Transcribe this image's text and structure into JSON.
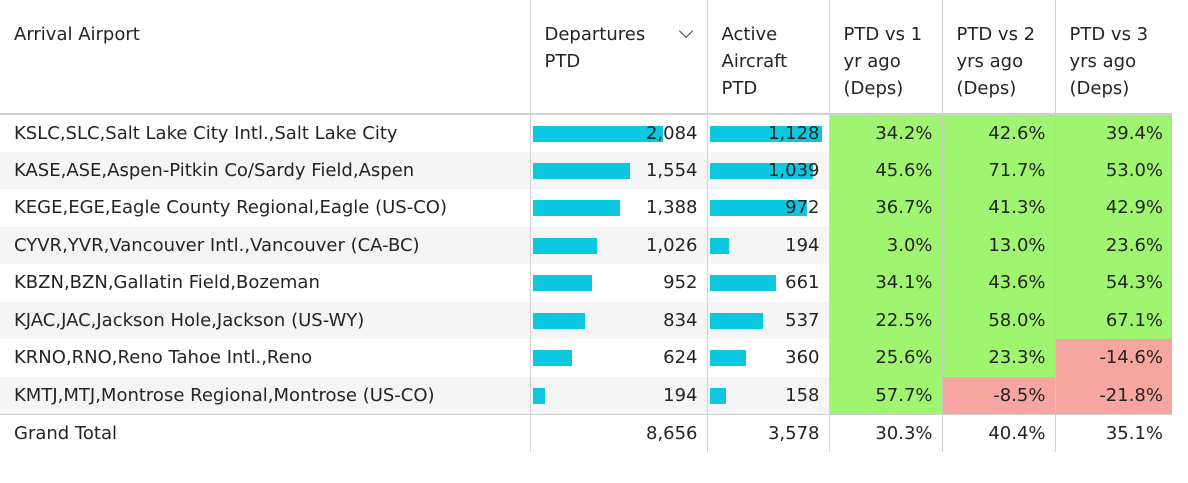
{
  "headers": {
    "airport": "Arrival Airport",
    "departures": "Departures PTD",
    "aircraft": "Active Aircraft PTD",
    "vs1": "PTD vs 1 yr ago (Deps)",
    "vs2": "PTD vs 2 yrs ago (Deps)",
    "vs3": "PTD vs 3 yrs ago (Deps)"
  },
  "rows": [
    {
      "airport": "KSLC,SLC,Salt Lake City Intl.,Salt Lake City",
      "departures": "2,084",
      "aircraft": "1,128",
      "vs1": "34.2%",
      "vs2": "42.6%",
      "vs3": "39.4%"
    },
    {
      "airport": "KASE,ASE,Aspen-Pitkin Co/Sardy Field,Aspen",
      "departures": "1,554",
      "aircraft": "1,039",
      "vs1": "45.6%",
      "vs2": "71.7%",
      "vs3": "53.0%"
    },
    {
      "airport": "KEGE,EGE,Eagle County Regional,Eagle (US-CO)",
      "departures": "1,388",
      "aircraft": "972",
      "vs1": "36.7%",
      "vs2": "41.3%",
      "vs3": "42.9%"
    },
    {
      "airport": "CYVR,YVR,Vancouver Intl.,Vancouver (CA-BC)",
      "departures": "1,026",
      "aircraft": "194",
      "vs1": "3.0%",
      "vs2": "13.0%",
      "vs3": "23.6%"
    },
    {
      "airport": "KBZN,BZN,Gallatin Field,Bozeman",
      "departures": "952",
      "aircraft": "661",
      "vs1": "34.1%",
      "vs2": "43.6%",
      "vs3": "54.3%"
    },
    {
      "airport": "KJAC,JAC,Jackson Hole,Jackson (US-WY)",
      "departures": "834",
      "aircraft": "537",
      "vs1": "22.5%",
      "vs2": "58.0%",
      "vs3": "67.1%"
    },
    {
      "airport": "KRNO,RNO,Reno Tahoe Intl.,Reno",
      "departures": "624",
      "aircraft": "360",
      "vs1": "25.6%",
      "vs2": "23.3%",
      "vs3": "-14.6%"
    },
    {
      "airport": "KMTJ,MTJ,Montrose Regional,Montrose (US-CO)",
      "departures": "194",
      "aircraft": "158",
      "vs1": "57.7%",
      "vs2": "-8.5%",
      "vs3": "-21.8%"
    }
  ],
  "total": {
    "label": "Grand Total",
    "departures": "8,656",
    "aircraft": "3,578",
    "vs1": "30.3%",
    "vs2": "40.4%",
    "vs3": "35.1%"
  },
  "colors": {
    "bar": "#0bc7df",
    "positive": "#9ff56f",
    "negative": "#f7a5a0"
  },
  "sort_icon": "chevron-down-icon"
}
